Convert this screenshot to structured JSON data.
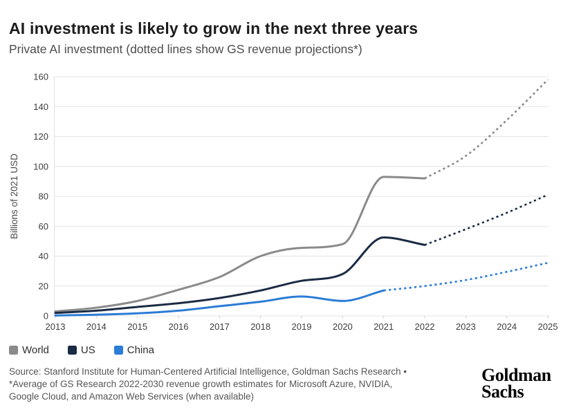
{
  "header": {
    "title": "AI investment is likely to grow in the next three years",
    "subtitle": "Private AI investment (dotted lines show GS revenue projections*)"
  },
  "chart_data": {
    "type": "line",
    "title": "AI investment is likely to grow in the next three years",
    "subtitle": "Private AI investment (dotted lines show GS revenue projections*)",
    "ylabel": "Billions of 2021 USD",
    "ylim": [
      0,
      160
    ],
    "ytick_step": 20,
    "xticks": [
      2013,
      2014,
      2015,
      2016,
      2017,
      2018,
      2019,
      2020,
      2021,
      2022,
      2023,
      2024,
      2025
    ],
    "grid": "horizontal",
    "legend_position": "bottom-left",
    "line_style_note": "solid = historical, dotted = GS revenue projections",
    "series": [
      {
        "name": "World",
        "color": "#8a8a8a",
        "solid": {
          "x": [
            2013,
            2014,
            2015,
            2016,
            2017,
            2018,
            2019,
            2020,
            2021,
            2022
          ],
          "y": [
            3,
            5.5,
            10,
            17.5,
            26,
            40,
            45.5,
            48,
            93,
            92
          ]
        },
        "dotted": {
          "x": [
            2022,
            2023,
            2024,
            2025
          ],
          "y": [
            92,
            107,
            131,
            158
          ]
        }
      },
      {
        "name": "US",
        "color": "#1b2b44",
        "solid": {
          "x": [
            2013,
            2014,
            2015,
            2016,
            2017,
            2018,
            2019,
            2020,
            2021,
            2022
          ],
          "y": [
            2,
            3.5,
            6,
            8.5,
            12,
            17,
            23.5,
            28,
            52.5,
            47.5
          ]
        },
        "dotted": {
          "x": [
            2022,
            2023,
            2024,
            2025
          ],
          "y": [
            47.5,
            58,
            69,
            81
          ]
        }
      },
      {
        "name": "China",
        "color": "#2b7cd5",
        "solid": {
          "x": [
            2013,
            2014,
            2015,
            2016,
            2017,
            2018,
            2019,
            2020,
            2021
          ],
          "y": [
            0.3,
            0.8,
            1.7,
            3.5,
            6.5,
            9.5,
            13,
            10,
            17
          ]
        },
        "dotted": {
          "x": [
            2021,
            2022,
            2023,
            2024,
            2025
          ],
          "y": [
            17,
            20,
            24,
            29.5,
            35.5
          ]
        }
      }
    ]
  },
  "legend": {
    "items": [
      {
        "label": "World",
        "color": "#8a8a8a"
      },
      {
        "label": "US",
        "color": "#1b2b44"
      },
      {
        "label": "China",
        "color": "#2b7cd5"
      }
    ]
  },
  "footer": {
    "line1": "Source: Stanford Institute for Human-Centered Artificial Intelligence, Goldman Sachs Research •",
    "line2": "*Average of GS Research 2022-2030 revenue growth estimates for Microsoft Azure, NVIDIA,",
    "line3": "Google Cloud, and Amazon Web Services (when available)"
  },
  "logo": {
    "line1": "Goldman",
    "line2": "Sachs"
  },
  "style": {
    "grid_color": "#e3e3e3",
    "tick_color": "#cfcfcf",
    "axis_text_color": "#3d3d3d",
    "ylabel_color": "#4a4a4a"
  }
}
